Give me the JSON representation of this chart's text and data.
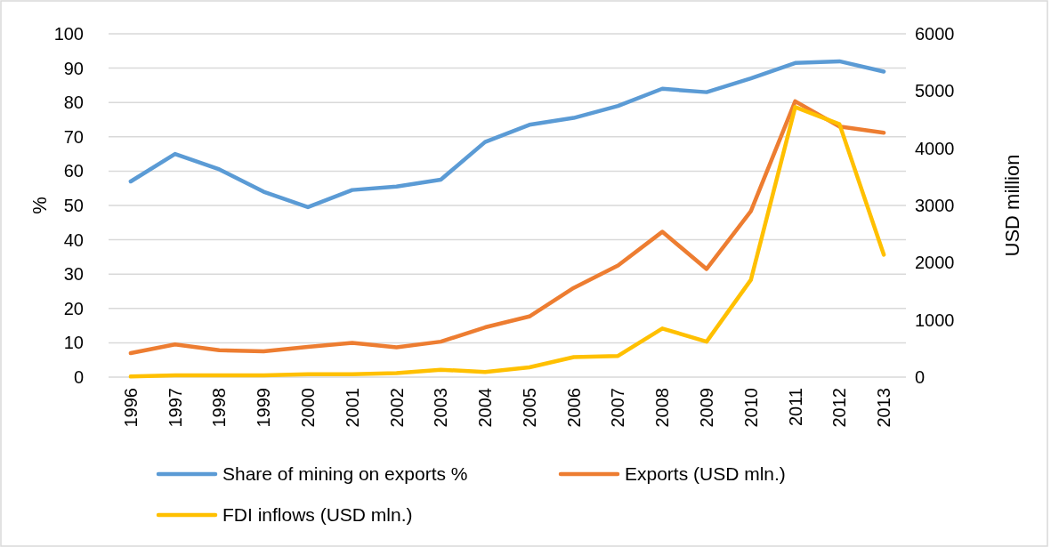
{
  "chart_data": {
    "type": "line",
    "ylabel": "%",
    "y2label": "USD million",
    "categories": [
      "1996",
      "1997",
      "1998",
      "1999",
      "2000",
      "2001",
      "2002",
      "2003",
      "2004",
      "2005",
      "2006",
      "2007",
      "2008",
      "2009",
      "2010",
      "2011",
      "2012",
      "2013"
    ],
    "series": [
      {
        "name": "Share of mining on exports %",
        "color": "#5b9bd5",
        "values": [
          57,
          65,
          60.5,
          54,
          49.5,
          54.5,
          55.5,
          57.5,
          68.5,
          73.5,
          75.5,
          79,
          84,
          83,
          87,
          91.5,
          92,
          89
        ]
      },
      {
        "name": "Exports (USD mln.)",
        "color": "#ed7d31",
        "axis": "y2",
        "values": [
          420,
          570,
          470,
          450,
          530,
          600,
          520,
          620,
          870,
          1060,
          1560,
          1950,
          2540,
          1890,
          2900,
          4820,
          4380,
          4270
        ]
      },
      {
        "name": "FDI inflows (USD mln.)",
        "color": "#ffc000",
        "axis": "y2",
        "values": [
          10,
          30,
          30,
          30,
          50,
          50,
          70,
          130,
          90,
          170,
          350,
          370,
          850,
          620,
          1700,
          4720,
          4420,
          2140
        ]
      }
    ],
    "ylim": [
      0,
      100
    ],
    "yticks": [
      0,
      10,
      20,
      30,
      40,
      50,
      60,
      70,
      80,
      90,
      100
    ],
    "y2lim": [
      0,
      6000
    ],
    "y2ticks": [
      0,
      1000,
      2000,
      3000,
      4000,
      5000,
      6000
    ],
    "grid": "y",
    "legend": "bottom"
  }
}
